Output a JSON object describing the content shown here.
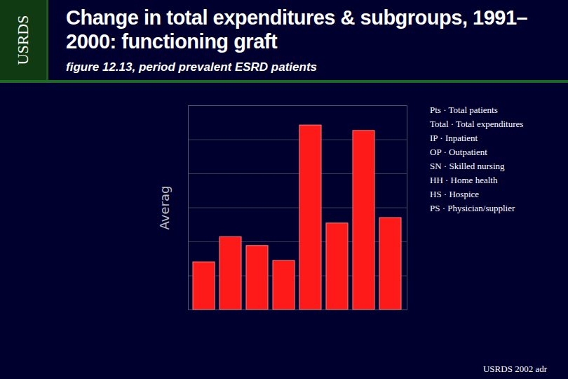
{
  "chart_data": {
    "type": "bar",
    "side_label": "USRDS",
    "title": "Change in total expenditures & subgroups, 1991–2000: functioning graft",
    "subtitle": "figure 12.13, period prevalent ESRD patients",
    "y_label": "Averag",
    "categories": [
      null,
      null,
      null,
      null,
      null,
      null,
      null,
      null
    ],
    "values": [
      1.4,
      2.14,
      1.88,
      1.44,
      5.42,
      2.54,
      5.26,
      2.7
    ],
    "color": "#ff1a1a",
    "ylim": [
      0,
      6
    ],
    "yticks": [
      0,
      1,
      2,
      3,
      4,
      5,
      6
    ],
    "grid": true,
    "tick_labels": false,
    "annotations": [
      "Pts · Total patients",
      "Total · Total expenditures",
      "IP · Inpatient",
      "OP · Outpatient",
      "SN · Skilled nursing",
      "HH · Home health",
      "HS · Hospice",
      "PS · Physician/supplier"
    ],
    "source": "USRDS 2002 adr"
  }
}
